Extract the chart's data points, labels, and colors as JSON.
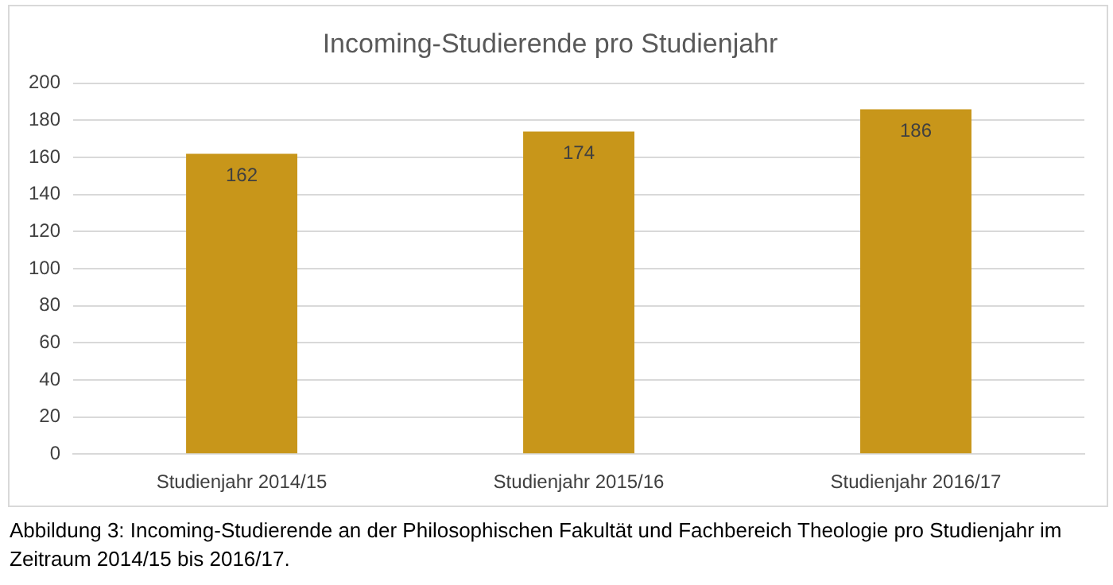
{
  "chart_data": {
    "type": "bar",
    "title": "Incoming-Studierende pro Studienjahr",
    "categories": [
      "Studienjahr 2014/15",
      "Studienjahr 2015/16",
      "Studienjahr 2016/17"
    ],
    "values": [
      162,
      174,
      186
    ],
    "color": "#c8961a",
    "ylim": [
      0,
      200
    ],
    "yticks": [
      0,
      20,
      40,
      60,
      80,
      100,
      120,
      140,
      160,
      180,
      200
    ],
    "grid": "y",
    "data_labels": true,
    "annotations": [
      "Abbildung 3: Incoming-Studierende an der Philosophischen Fakultät und Fachbereich Theologie pro Studienjahr im Zeitraum 2014/15 bis 2016/17."
    ]
  }
}
